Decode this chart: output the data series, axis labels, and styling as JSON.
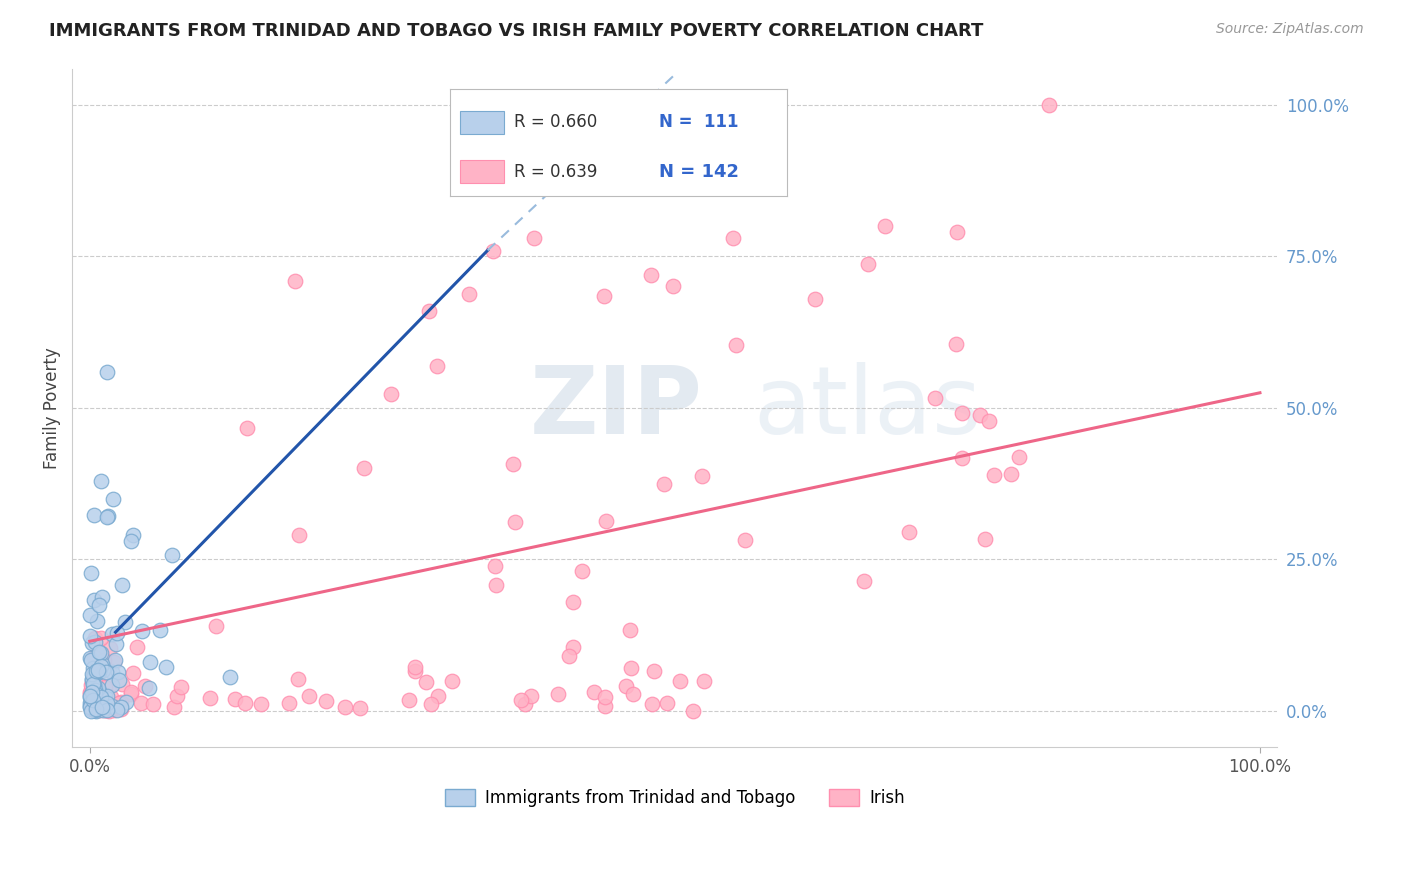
{
  "title": "IMMIGRANTS FROM TRINIDAD AND TOBAGO VS IRISH FAMILY POVERTY CORRELATION CHART",
  "source": "Source: ZipAtlas.com",
  "ylabel": "Family Poverty",
  "legend_r1": "R = 0.660",
  "legend_n1": "N =  111",
  "legend_r2": "R = 0.639",
  "legend_n2": "N = 142",
  "blue_scatter_face": "#B8D0EB",
  "blue_scatter_edge": "#7AAAD0",
  "pink_scatter_face": "#FFB3C6",
  "pink_scatter_edge": "#FF8FAF",
  "blue_line_color": "#2255AA",
  "blue_dash_color": "#99BBDD",
  "pink_line_color": "#EE6688",
  "watermark_color": "#C8D8E8",
  "background_color": "#FFFFFF",
  "grid_color": "#CCCCCC",
  "right_tick_color": "#6699CC",
  "legend_text_color": "#333333",
  "legend_n_color": "#3366CC",
  "title_color": "#222222",
  "source_color": "#999999",
  "xlim": [
    -0.015,
    1.015
  ],
  "ylim": [
    -0.06,
    1.06
  ]
}
